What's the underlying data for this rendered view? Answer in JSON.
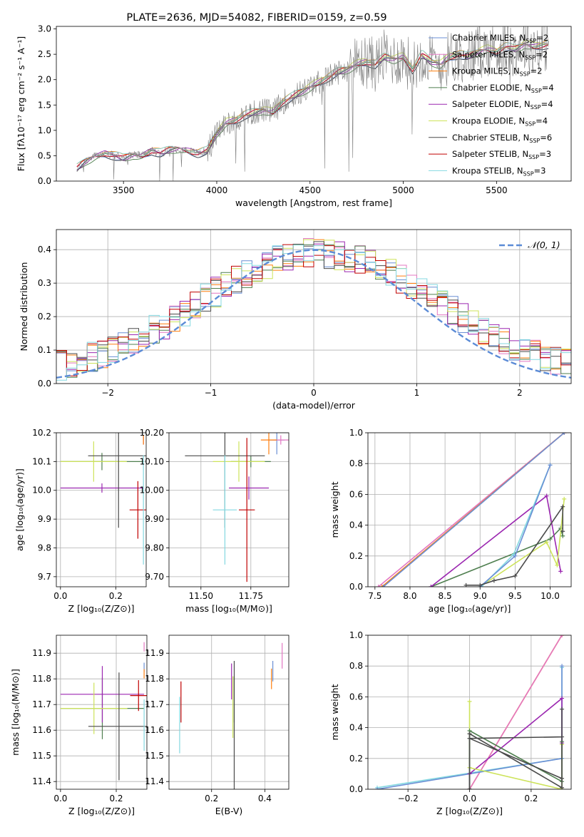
{
  "colors": {
    "chabrier_miles": "#6a8fd4",
    "salpeter_miles": "#e377c2",
    "kroupa_miles": "#ff7f0e",
    "chabrier_elodie": "#4f7f4f",
    "salpeter_elodie": "#9b27b0",
    "kroupa_elodie": "#cde35a",
    "chabrier_stelib": "#4a4a4a",
    "salpeter_stelib": "#c00000",
    "kroupa_stelib": "#84d8e0",
    "gauss": "#5b8bd6",
    "data": "#7f7f7f"
  },
  "chart_data": [
    {
      "id": "spectrum",
      "type": "line",
      "title": "PLATE=2636, MJD=54082, FIBERID=0159, z=0.59",
      "xlabel": "wavelength [Angstrom, rest frame]",
      "ylabel": "Flux [fλ10⁻¹⁷ erg cm⁻² s⁻¹ A⁻¹]",
      "xlim": [
        3140,
        5900
      ],
      "ylim": [
        0,
        3.05
      ],
      "xticks": [
        3500,
        4000,
        4500,
        5000,
        5500
      ],
      "yticks": [
        0.0,
        0.5,
        1.0,
        1.5,
        2.0,
        2.5,
        3.0
      ],
      "grid": false,
      "legend_position": "right",
      "legend": [
        {
          "label": "Chabrier MILES, N",
          "sub": "SSP",
          "tail": "=2",
          "color": "chabrier_miles"
        },
        {
          "label": "Salpeter MILES, N",
          "sub": "SSP",
          "tail": "=2",
          "color": "salpeter_miles"
        },
        {
          "label": "Kroupa MILES, N",
          "sub": "SSP",
          "tail": "=2",
          "color": "kroupa_miles"
        },
        {
          "label": "Chabrier ELODIE, N",
          "sub": "SSP",
          "tail": "=4",
          "color": "chabrier_elodie"
        },
        {
          "label": "Salpeter ELODIE, N",
          "sub": "SSP",
          "tail": "=4",
          "color": "salpeter_elodie"
        },
        {
          "label": "Kroupa ELODIE, N",
          "sub": "SSP",
          "tail": "=4",
          "color": "kroupa_elodie"
        },
        {
          "label": "Chabrier STELIB, N",
          "sub": "SSP",
          "tail": "=6",
          "color": "chabrier_stelib"
        },
        {
          "label": "Salpeter STELIB, N",
          "sub": "SSP",
          "tail": "=3",
          "color": "salpeter_stelib"
        },
        {
          "label": "Kroupa STELIB, N",
          "sub": "SSP",
          "tail": "=3",
          "color": "kroupa_stelib"
        }
      ],
      "continuum": [
        [
          3250,
          0.25
        ],
        [
          3300,
          0.4
        ],
        [
          3350,
          0.5
        ],
        [
          3400,
          0.55
        ],
        [
          3450,
          0.5
        ],
        [
          3500,
          0.45
        ],
        [
          3550,
          0.52
        ],
        [
          3600,
          0.5
        ],
        [
          3650,
          0.6
        ],
        [
          3700,
          0.55
        ],
        [
          3750,
          0.62
        ],
        [
          3800,
          0.65
        ],
        [
          3850,
          0.6
        ],
        [
          3900,
          0.55
        ],
        [
          3950,
          0.6
        ],
        [
          4000,
          0.95
        ],
        [
          4050,
          1.15
        ],
        [
          4100,
          1.2
        ],
        [
          4150,
          1.3
        ],
        [
          4200,
          1.35
        ],
        [
          4250,
          1.4
        ],
        [
          4300,
          1.35
        ],
        [
          4350,
          1.55
        ],
        [
          4400,
          1.65
        ],
        [
          4450,
          1.75
        ],
        [
          4500,
          1.85
        ],
        [
          4550,
          1.95
        ],
        [
          4600,
          2.05
        ],
        [
          4650,
          2.15
        ],
        [
          4700,
          2.2
        ],
        [
          4750,
          2.3
        ],
        [
          4800,
          2.35
        ],
        [
          4850,
          2.3
        ],
        [
          4900,
          2.45
        ],
        [
          4950,
          2.4
        ],
        [
          5000,
          2.45
        ],
        [
          5050,
          2.2
        ],
        [
          5100,
          2.5
        ],
        [
          5150,
          2.35
        ],
        [
          5200,
          2.3
        ],
        [
          5250,
          2.45
        ],
        [
          5300,
          2.5
        ],
        [
          5350,
          2.45
        ],
        [
          5400,
          2.55
        ],
        [
          5450,
          2.6
        ],
        [
          5500,
          2.55
        ],
        [
          5550,
          2.65
        ],
        [
          5600,
          2.6
        ],
        [
          5650,
          2.7
        ],
        [
          5700,
          2.65
        ],
        [
          5780,
          2.7
        ]
      ]
    },
    {
      "id": "residuals",
      "type": "line",
      "xlabel": "(data-model)/error",
      "ylabel": "Normed distribution",
      "xlim": [
        -2.5,
        2.5
      ],
      "ylim": [
        0,
        0.46
      ],
      "xticks": [
        -2,
        -1,
        0,
        1,
        2
      ],
      "yticks": [
        0.0,
        0.1,
        0.2,
        0.3,
        0.4
      ],
      "grid": true,
      "legend_position": "top-right",
      "gauss_label": "𝒩(0, 1)",
      "bin_width": 0.1,
      "bin_start": -2.5
    },
    {
      "id": "age_vs_Z",
      "type": "scatter",
      "xlabel": "Z [log₁₀(Z/Z⊙)]",
      "ylabel": "age  [log₁₀(age/yr)]",
      "xlim": [
        -0.015,
        0.31
      ],
      "ylim": [
        9.665,
        10.2
      ],
      "xticks": [
        0.0,
        0.2
      ],
      "yticks": [
        9.7,
        9.8,
        9.9,
        10.0,
        10.1,
        10.2
      ],
      "tick_format": 1,
      "grid": true,
      "points": [
        {
          "x": 0.3,
          "y": 10.175,
          "xe": 0.0,
          "ye": 0.0,
          "color": "chabrier_miles"
        },
        {
          "x": 0.3,
          "y": 10.175,
          "xe": 0.0,
          "ye": 0.0,
          "color": "salpeter_miles"
        },
        {
          "x": 0.3,
          "y": 10.175,
          "xe": 0.0,
          "ye": 0.0,
          "color": "kroupa_miles"
        },
        {
          "x": 0.15,
          "y": 10.1,
          "xe": 0.15,
          "ye": 0.03,
          "color": "chabrier_elodie"
        },
        {
          "x": 0.15,
          "y": 10.008,
          "xe": 0.15,
          "ye": 0.0,
          "color": "salpeter_elodie"
        },
        {
          "x": 0.12,
          "y": 10.1,
          "xe": 0.12,
          "ye": 0.07,
          "color": "kroupa_elodie"
        },
        {
          "x": 0.21,
          "y": 10.12,
          "xe": 0.11,
          "ye": 0.25,
          "color": "chabrier_stelib"
        },
        {
          "x": 0.28,
          "y": 9.932,
          "xe": 0.03,
          "ye": 0.1,
          "color": "salpeter_stelib"
        },
        {
          "x": 0.3,
          "y": 9.932,
          "xe": 0.0,
          "ye": 0.19,
          "color": "kroupa_stelib"
        }
      ]
    },
    {
      "id": "age_vs_mass",
      "type": "scatter",
      "xlabel": "mass [log₁₀(M/M⊙)]",
      "ylabel": "",
      "xlim": [
        11.34,
        11.94
      ],
      "ylim": [
        9.665,
        10.2
      ],
      "xticks": [
        11.5,
        11.75
      ],
      "yticks": [
        9.7,
        9.8,
        9.9,
        10.0,
        10.1,
        10.2
      ],
      "tick_format": 2,
      "grid": true,
      "points": [
        {
          "x": 11.88,
          "y": 10.175,
          "xe": 0.04,
          "ye": 0.05,
          "color": "chabrier_miles"
        },
        {
          "x": 11.9,
          "y": 10.175,
          "xe": 0.04,
          "ye": 0.0,
          "color": "salpeter_miles"
        },
        {
          "x": 11.84,
          "y": 10.175,
          "xe": 0.04,
          "ye": 0.05,
          "color": "kroupa_miles"
        },
        {
          "x": 11.75,
          "y": 10.1,
          "xe": 0.1,
          "ye": 0.02,
          "color": "chabrier_elodie"
        },
        {
          "x": 11.74,
          "y": 10.008,
          "xe": 0.1,
          "ye": 0.04,
          "color": "salpeter_elodie"
        },
        {
          "x": 11.69,
          "y": 10.1,
          "xe": 0.13,
          "ye": 0.07,
          "color": "kroupa_elodie"
        },
        {
          "x": 11.62,
          "y": 10.12,
          "xe": 0.2,
          "ye": 0.25,
          "color": "chabrier_stelib"
        },
        {
          "x": 11.73,
          "y": 9.932,
          "xe": 0.04,
          "ye": 0.25,
          "color": "salpeter_stelib"
        },
        {
          "x": 11.62,
          "y": 9.932,
          "xe": 0.06,
          "ye": 0.19,
          "color": "kroupa_stelib"
        }
      ]
    },
    {
      "id": "weight_vs_age",
      "type": "line",
      "xlabel": "age  [log₁₀(age/yr)]",
      "ylabel": "mass weight",
      "xlim": [
        7.4,
        10.3
      ],
      "ylim": [
        0,
        1
      ],
      "xticks": [
        7.5,
        8.0,
        8.5,
        9.0,
        9.5,
        10.0
      ],
      "yticks": [
        0.0,
        0.2,
        0.4,
        0.6,
        0.8,
        1.0
      ],
      "tick_format": 1,
      "grid": true,
      "series": [
        {
          "color": "salpeter_miles",
          "points": [
            [
              7.55,
              0.0
            ],
            [
              10.2,
              1.0
            ]
          ]
        },
        {
          "color": "kroupa_miles",
          "points": [
            [
              7.6,
              0.0
            ],
            [
              10.2,
              1.0
            ]
          ]
        },
        {
          "color": "chabrier_miles",
          "points": [
            [
              7.62,
              0.0
            ],
            [
              10.2,
              1.0
            ]
          ]
        },
        {
          "color": "chabrier_elodie",
          "points": [
            [
              8.3,
              0.0
            ],
            [
              10.0,
              0.31
            ],
            [
              10.15,
              0.38
            ],
            [
              10.18,
              0.33
            ]
          ]
        },
        {
          "color": "salpeter_elodie",
          "points": [
            [
              8.3,
              0.0
            ],
            [
              9.95,
              0.59
            ],
            [
              10.15,
              0.1
            ]
          ]
        },
        {
          "color": "kroupa_elodie",
          "points": [
            [
              9.0,
              0.0
            ],
            [
              9.95,
              0.29
            ],
            [
              10.1,
              0.14
            ],
            [
              10.2,
              0.57
            ]
          ]
        },
        {
          "color": "kroupa_stelib",
          "points": [
            [
              9.02,
              0.0
            ],
            [
              9.48,
              0.21
            ],
            [
              10.0,
              0.79
            ]
          ]
        },
        {
          "color": "chabrier_miles",
          "points": [
            [
              9.0,
              0.0
            ],
            [
              9.5,
              0.2
            ],
            [
              10.0,
              0.79
            ]
          ]
        },
        {
          "color": "chabrier_stelib",
          "points": [
            [
              8.8,
              0.01
            ],
            [
              9.0,
              0.01
            ],
            [
              9.2,
              0.04
            ],
            [
              9.5,
              0.07
            ],
            [
              10.18,
              0.52
            ],
            [
              10.18,
              0.36
            ]
          ]
        }
      ]
    },
    {
      "id": "mass_vs_Z",
      "type": "scatter",
      "xlabel": "Z [log₁₀(Z/Z⊙)]",
      "ylabel": "mass [log₁₀(M/M⊙)]",
      "xlim": [
        -0.015,
        0.31
      ],
      "ylim": [
        11.37,
        11.97
      ],
      "xticks": [
        0.0,
        0.2
      ],
      "yticks": [
        11.4,
        11.5,
        11.6,
        11.7,
        11.8,
        11.9
      ],
      "tick_format": 1,
      "grid": true,
      "points": [
        {
          "x": 0.3,
          "y": 11.845,
          "xe": 0.0,
          "ye": 0.0,
          "color": "chabrier_miles"
        },
        {
          "x": 0.3,
          "y": 11.925,
          "xe": 0.0,
          "ye": 0.0,
          "color": "salpeter_miles"
        },
        {
          "x": 0.3,
          "y": 11.82,
          "xe": 0.0,
          "ye": 0.0,
          "color": "kroupa_miles"
        },
        {
          "x": 0.15,
          "y": 11.685,
          "xe": 0.15,
          "ye": 0.12,
          "color": "chabrier_elodie"
        },
        {
          "x": 0.15,
          "y": 11.74,
          "xe": 0.15,
          "ye": 0.11,
          "color": "salpeter_elodie"
        },
        {
          "x": 0.12,
          "y": 11.685,
          "xe": 0.12,
          "ye": 0.1,
          "color": "kroupa_elodie"
        },
        {
          "x": 0.21,
          "y": 11.615,
          "xe": 0.11,
          "ye": 0.21,
          "color": "chabrier_stelib"
        },
        {
          "x": 0.28,
          "y": 11.735,
          "xe": 0.03,
          "ye": 0.06,
          "color": "salpeter_stelib"
        },
        {
          "x": 0.3,
          "y": 11.62,
          "xe": 0.0,
          "ye": 0.1,
          "color": "kroupa_stelib"
        }
      ]
    },
    {
      "id": "mass_vs_ebv",
      "type": "scatter",
      "xlabel": "E(B-V)",
      "ylabel": "",
      "xlim": [
        0.04,
        0.49
      ],
      "ylim": [
        11.37,
        11.97
      ],
      "xticks": [
        0.2,
        0.4
      ],
      "yticks": [
        11.4,
        11.5,
        11.6,
        11.7,
        11.8,
        11.9
      ],
      "tick_format": 1,
      "grid": true,
      "points": [
        {
          "x": 0.43,
          "y": 11.83,
          "xe": 0.0,
          "ye": 0.04,
          "color": "chabrier_miles"
        },
        {
          "x": 0.465,
          "y": 11.89,
          "xe": 0.0,
          "ye": 0.05,
          "color": "salpeter_miles"
        },
        {
          "x": 0.425,
          "y": 11.8,
          "xe": 0.0,
          "ye": 0.04,
          "color": "kroupa_miles"
        },
        {
          "x": 0.285,
          "y": 11.72,
          "xe": 0.0,
          "ye": 0.09,
          "color": "chabrier_elodie"
        },
        {
          "x": 0.275,
          "y": 11.79,
          "xe": 0.0,
          "ye": 0.07,
          "color": "salpeter_elodie"
        },
        {
          "x": 0.28,
          "y": 11.69,
          "xe": 0.0,
          "ye": 0.12,
          "color": "kroupa_elodie"
        },
        {
          "x": 0.285,
          "y": 11.62,
          "xe": 0.0,
          "ye": 0.25,
          "color": "chabrier_stelib"
        },
        {
          "x": 0.085,
          "y": 11.71,
          "xe": 0.0,
          "ye": 0.08,
          "color": "salpeter_stelib"
        },
        {
          "x": 0.08,
          "y": 11.62,
          "xe": 0.0,
          "ye": 0.11,
          "color": "kroupa_stelib"
        }
      ]
    },
    {
      "id": "weight_vs_Z",
      "type": "line",
      "xlabel": "Z [log₁₀(Z/Z⊙)]",
      "ylabel": "mass weight",
      "xlim": [
        -0.33,
        0.33
      ],
      "ylim": [
        0,
        1
      ],
      "xticks": [
        -0.2,
        0.0,
        0.2
      ],
      "yticks": [
        0.0,
        0.2,
        0.4,
        0.6,
        0.8,
        1.0
      ],
      "tick_format": 1,
      "grid": true,
      "series": [
        {
          "color": "kroupa_miles",
          "points": [
            [
              0.0,
              0.0
            ],
            [
              0.3,
              1.0
            ]
          ]
        },
        {
          "color": "salpeter_miles",
          "points": [
            [
              0.0,
              0.0
            ],
            [
              0.3,
              1.0
            ]
          ]
        },
        {
          "color": "kroupa_stelib",
          "points": [
            [
              -0.3,
              0.01
            ],
            [
              0.3,
              0.2
            ],
            [
              0.3,
              0.79
            ]
          ]
        },
        {
          "color": "chabrier_miles",
          "points": [
            [
              -0.3,
              0.0
            ],
            [
              0.3,
              0.2
            ],
            [
              0.3,
              0.8
            ]
          ]
        },
        {
          "color": "salpeter_elodie",
          "points": [
            [
              0.0,
              0.0
            ],
            [
              0.0,
              0.1
            ],
            [
              0.3,
              0.59
            ],
            [
              0.3,
              0.3
            ]
          ]
        },
        {
          "color": "kroupa_elodie",
          "points": [
            [
              0.0,
              0.57
            ],
            [
              0.0,
              0.14
            ],
            [
              0.3,
              0.0
            ],
            [
              0.3,
              0.29
            ]
          ]
        },
        {
          "color": "chabrier_elodie",
          "points": [
            [
              0.0,
              0.0
            ],
            [
              0.0,
              0.38
            ],
            [
              0.3,
              0.05
            ],
            [
              0.3,
              0.31
            ]
          ]
        },
        {
          "color": "chabrier_stelib",
          "points": [
            [
              0.0,
              0.0
            ],
            [
              0.0,
              0.36
            ],
            [
              0.3,
              0.01
            ],
            [
              0.3,
              0.52
            ],
            [
              0.3,
              0.34
            ],
            [
              0.0,
              0.33
            ],
            [
              0.3,
              0.07
            ]
          ]
        }
      ]
    }
  ]
}
